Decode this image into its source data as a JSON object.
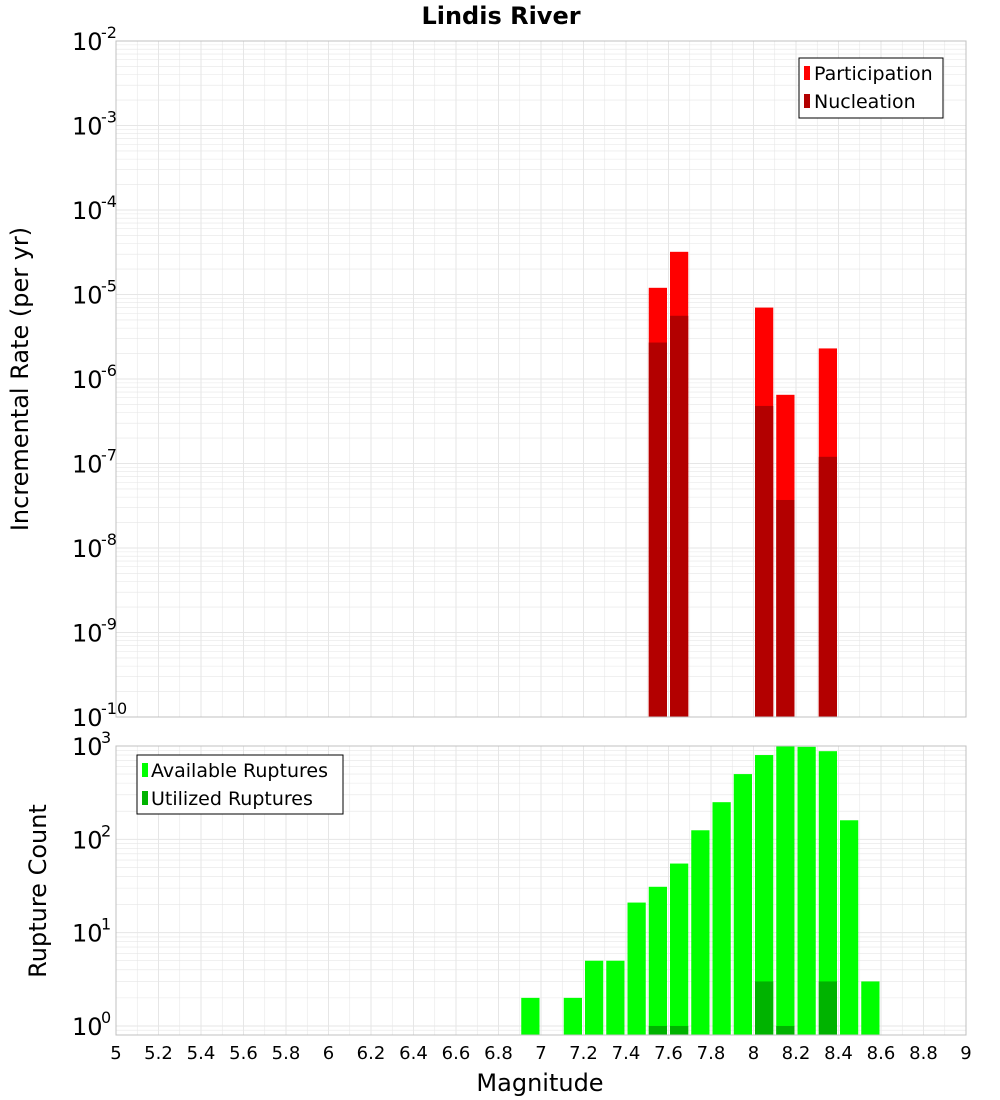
{
  "title": "Lindis River",
  "xlabel": "Magnitude",
  "x_ticks": [
    "5",
    "5.2",
    "5.4",
    "5.6",
    "5.8",
    "6",
    "6.2",
    "6.4",
    "6.6",
    "6.8",
    "7",
    "7.2",
    "7.4",
    "7.6",
    "7.8",
    "8",
    "8.2",
    "8.4",
    "8.6",
    "8.8",
    "9"
  ],
  "colors": {
    "participation": "#ff0000",
    "nucleation": "#b30000",
    "available": "#00ff00",
    "utilized": "#00b300",
    "grid": "#e6e6e6",
    "frame": "#c0c0c0"
  },
  "chart_data": [
    {
      "type": "bar",
      "ylabel": "Incremental Rate (per yr)",
      "yscale": "log",
      "xlim": [
        5,
        9
      ],
      "ylim": [
        1e-10,
        0.01
      ],
      "bin_width": 0.1,
      "y_ticks": [
        {
          "base": "10",
          "exp": "-10"
        },
        {
          "base": "10",
          "exp": "-9"
        },
        {
          "base": "10",
          "exp": "-8"
        },
        {
          "base": "10",
          "exp": "-7"
        },
        {
          "base": "10",
          "exp": "-6"
        },
        {
          "base": "10",
          "exp": "-5"
        },
        {
          "base": "10",
          "exp": "-4"
        },
        {
          "base": "10",
          "exp": "-3"
        },
        {
          "base": "10",
          "exp": "-2"
        }
      ],
      "legend_position": "top-right",
      "series": [
        {
          "name": "Participation",
          "x": [
            7.55,
            7.65,
            8.05,
            8.15,
            8.35
          ],
          "values": [
            1.2e-05,
            3.2e-05,
            7e-06,
            6.5e-07,
            2.3e-06
          ]
        },
        {
          "name": "Nucleation",
          "x": [
            7.55,
            7.65,
            8.05,
            8.15,
            8.35
          ],
          "values": [
            2.7e-06,
            5.6e-06,
            4.8e-07,
            3.7e-08,
            1.2e-07
          ]
        }
      ]
    },
    {
      "type": "bar",
      "ylabel": "Rupture Count",
      "yscale": "log",
      "xlim": [
        5,
        9
      ],
      "ylim": [
        0.8,
        1000
      ],
      "bin_width": 0.1,
      "y_ticks": [
        {
          "base": "10",
          "exp": "0"
        },
        {
          "base": "10",
          "exp": "1"
        },
        {
          "base": "10",
          "exp": "2"
        },
        {
          "base": "10",
          "exp": "3"
        }
      ],
      "legend_position": "top-left",
      "series": [
        {
          "name": "Available Ruptures",
          "x": [
            6.95,
            7.15,
            7.25,
            7.35,
            7.45,
            7.55,
            7.65,
            7.75,
            7.85,
            7.95,
            8.05,
            8.15,
            8.25,
            8.35,
            8.45,
            8.55
          ],
          "values": [
            2,
            2,
            5,
            5,
            21,
            31,
            55,
            125,
            250,
            500,
            800,
            1000,
            980,
            880,
            160,
            3
          ]
        },
        {
          "name": "Utilized Ruptures",
          "x": [
            7.55,
            7.65,
            8.05,
            8.15,
            8.35
          ],
          "values": [
            1,
            1,
            3,
            1,
            3
          ]
        }
      ]
    }
  ]
}
